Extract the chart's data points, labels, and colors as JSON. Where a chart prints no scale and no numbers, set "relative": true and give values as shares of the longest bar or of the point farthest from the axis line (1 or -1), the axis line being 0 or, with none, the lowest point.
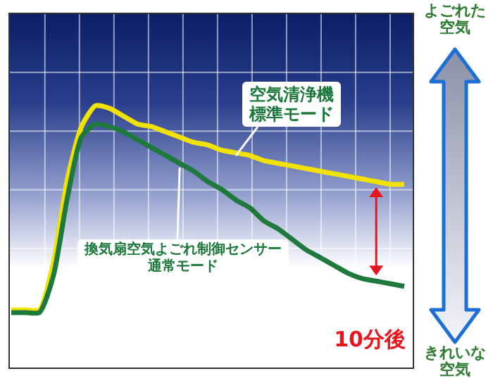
{
  "chart_data": {
    "type": "line",
    "relative": true,
    "grid": true,
    "categories": [
      null,
      null,
      null,
      null,
      null,
      null,
      null,
      null,
      null,
      null,
      null,
      null,
      null,
      null,
      null,
      null,
      null,
      null,
      null,
      null,
      null,
      null,
      null,
      null,
      null,
      null,
      null,
      null,
      null
    ],
    "series": [
      {
        "name": "空気清浄機標準モード",
        "color": "#f2e200",
        "values": [
          0.22,
          0.22,
          0.22,
          0.4,
          0.72,
          0.92,
          1.0,
          0.99,
          0.96,
          0.93,
          0.92,
          0.9,
          0.88,
          0.86,
          0.85,
          0.83,
          0.82,
          0.81,
          0.79,
          0.78,
          0.77,
          0.76,
          0.75,
          0.74,
          0.73,
          0.72,
          0.71,
          0.7,
          0.7
        ]
      },
      {
        "name": "換気扇空気よごれ制御センサー通常モード",
        "color": "#1d7a3c",
        "values": [
          0.21,
          0.21,
          0.21,
          0.35,
          0.65,
          0.88,
          0.93,
          0.92,
          0.9,
          0.87,
          0.84,
          0.81,
          0.78,
          0.75,
          0.71,
          0.68,
          0.64,
          0.61,
          0.56,
          0.53,
          0.49,
          0.45,
          0.42,
          0.39,
          0.36,
          0.34,
          0.33,
          0.32,
          0.31
        ]
      }
    ],
    "annotations": [
      "10分後",
      "よごれた空気",
      "きれいな空気"
    ]
  }
}
